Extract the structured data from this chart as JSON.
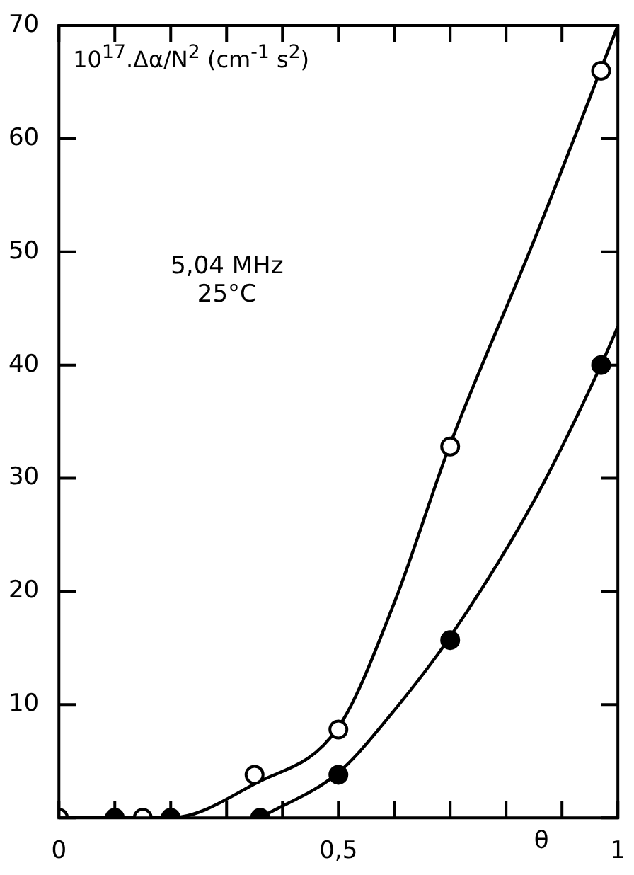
{
  "chart_data": {
    "type": "scatter",
    "ylabel": "10$^{17}$.Δα/N$^{2}$ (cm$^{-1}$ s$^{2}$)",
    "xlabel": "θ",
    "annotations": [
      "5,04 MHz",
      "25°C"
    ],
    "xlim": [
      0,
      1
    ],
    "ylim": [
      0,
      70
    ],
    "xticks": [
      0,
      {
        "value": 0.1,
        "label": null
      },
      {
        "value": 0.2,
        "label": null
      },
      {
        "value": 0.3,
        "label": null
      },
      {
        "value": 0.4,
        "label": null
      },
      {
        "value": 0.5,
        "label": "0,5"
      },
      {
        "value": 0.6,
        "label": null
      },
      {
        "value": 0.7,
        "label": null
      },
      {
        "value": 0.8,
        "label": null
      },
      {
        "value": 0.9,
        "label": null
      },
      1
    ],
    "yticks": [
      {
        "value": 0,
        "label": null
      },
      10,
      20,
      30,
      40,
      50,
      60,
      70
    ],
    "grid": false,
    "legend": false,
    "series": [
      {
        "type": "scatter",
        "marker": "circle",
        "color": "#000000",
        "x": [
          0,
          0.15,
          0.35,
          0.5,
          0.7,
          0.97
        ],
        "values": [
          0,
          0,
          3.8,
          7.8,
          32.8,
          66
        ]
      },
      {
        "type": "scatter",
        "marker": "circle",
        "color": "#000000",
        "x": [
          0.1,
          0.2,
          0.36,
          0.5,
          0.7,
          0.97
        ],
        "values": [
          0,
          0,
          0,
          3.8,
          15.7,
          40
        ]
      },
      {
        "type": "line",
        "marker": "none",
        "color": "#000000",
        "x": [
          0,
          0.2,
          0.35,
          0.5,
          0.6,
          0.7,
          0.85,
          1.0
        ],
        "values": [
          0,
          0,
          3,
          8,
          19,
          33,
          51,
          70
        ]
      },
      {
        "type": "line",
        "marker": "none",
        "color": "#000000",
        "x": [
          0.36,
          0.5,
          0.6,
          0.7,
          0.85,
          0.97,
          1.0
        ],
        "values": [
          0,
          4,
          9.5,
          16,
          28,
          40,
          43.4
        ]
      }
    ]
  }
}
